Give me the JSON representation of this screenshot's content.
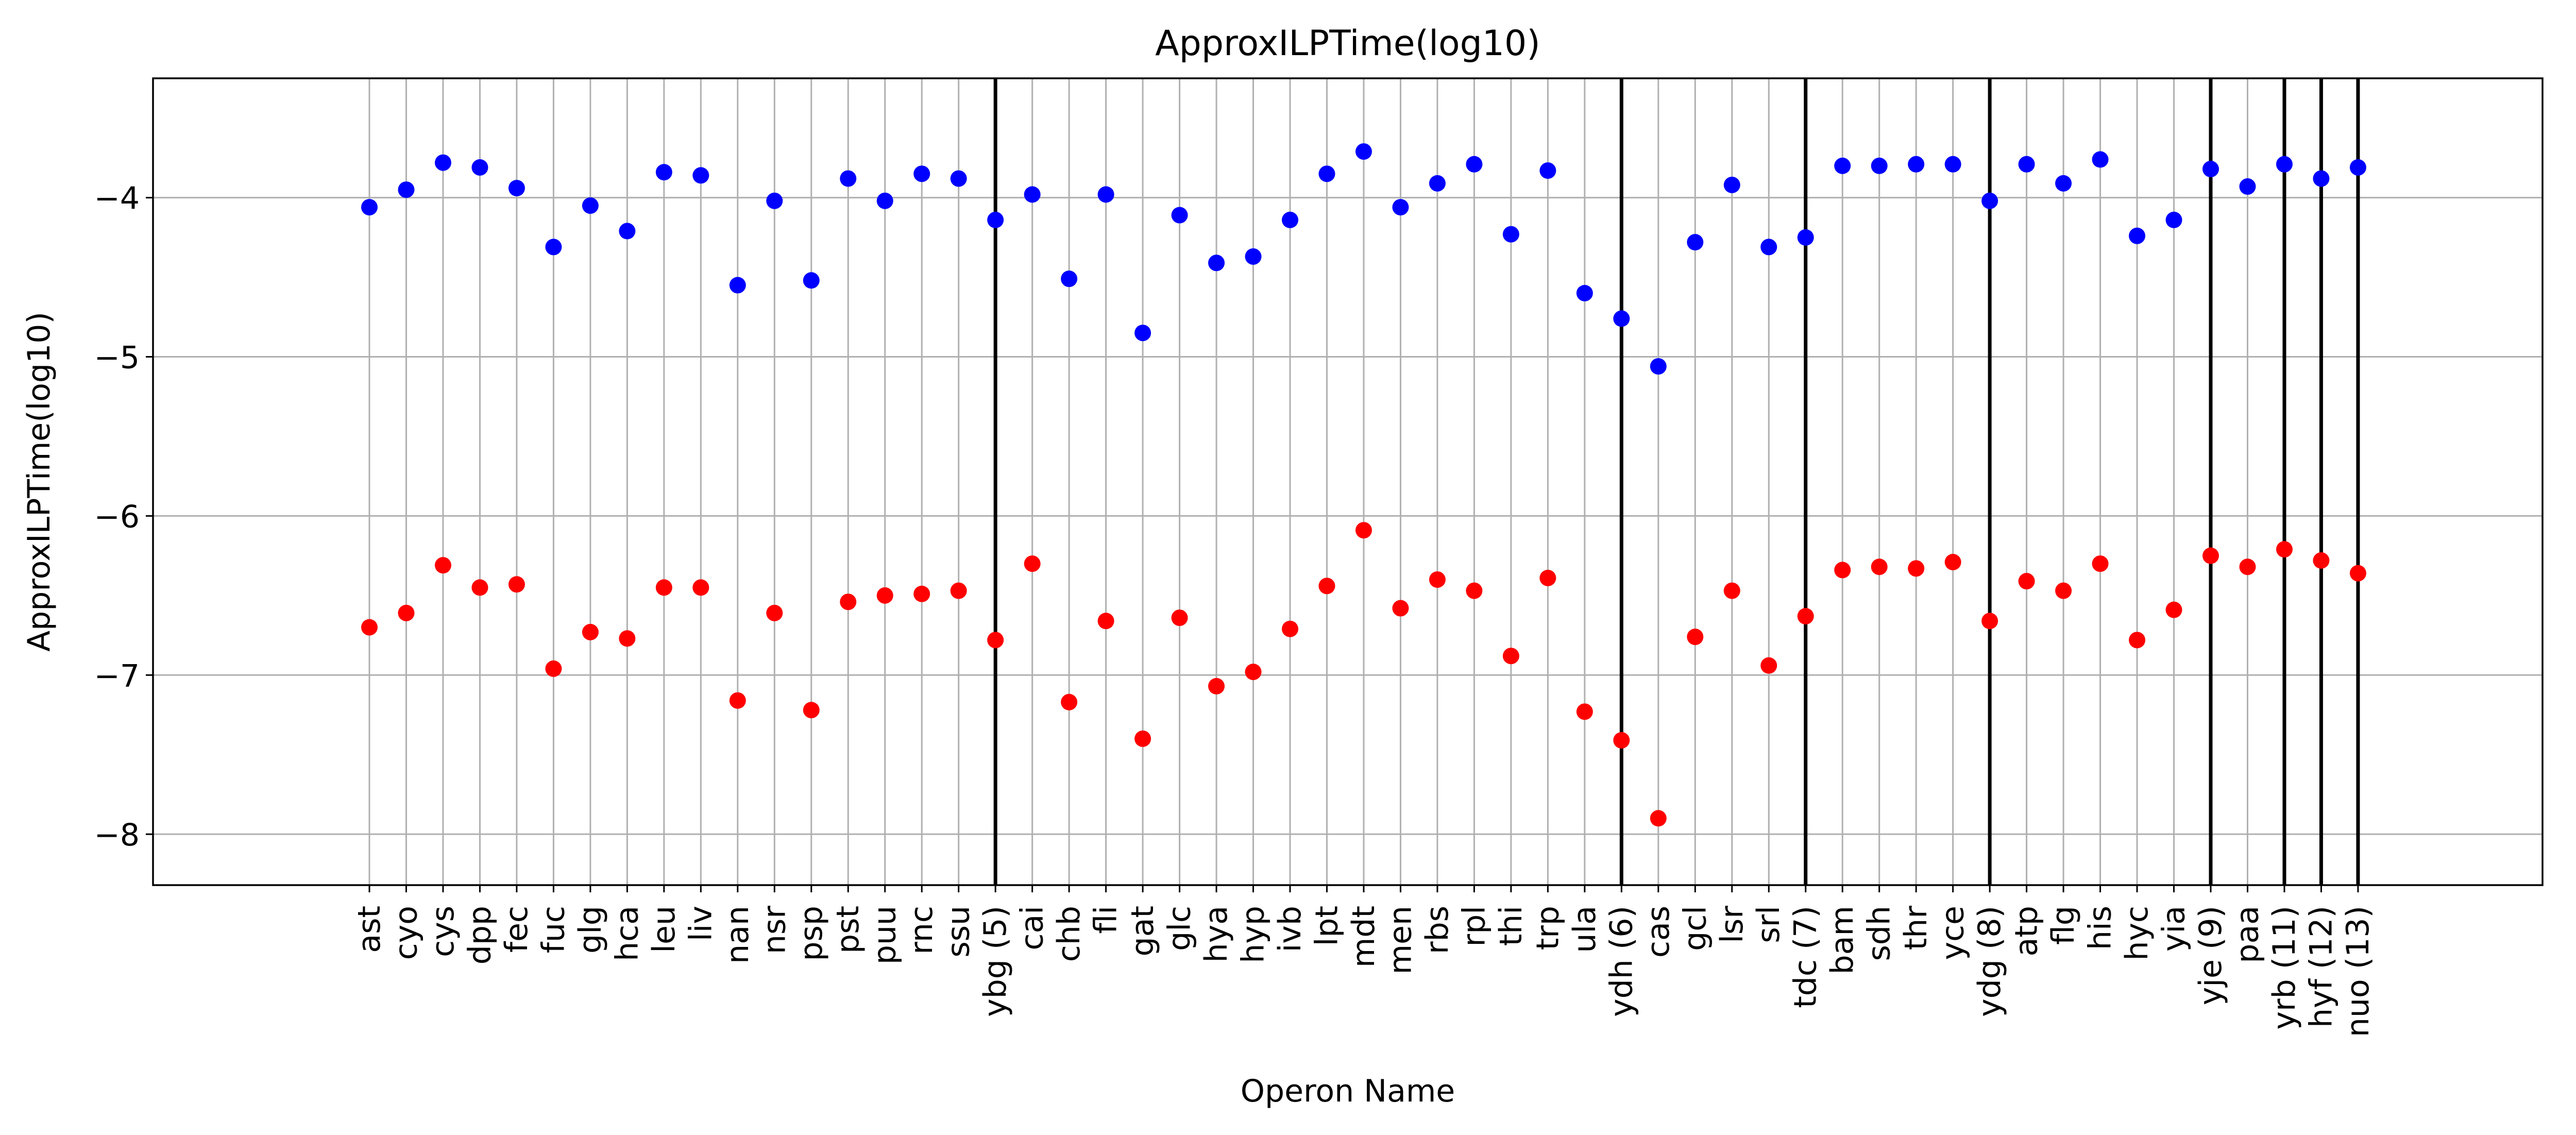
{
  "chart_data": {
    "type": "scatter",
    "title": "ApproxILPTime(log10)",
    "xlabel": "Operon Name",
    "ylabel": "ApproxILPTime(log10)",
    "categories": [
      "ast",
      "cyo",
      "cys",
      "dpp",
      "fec",
      "fuc",
      "glg",
      "hca",
      "leu",
      "liv",
      "nan",
      "nsr",
      "psp",
      "pst",
      "puu",
      "rnc",
      "ssu",
      "ybg (5)",
      "cai",
      "chb",
      "fli",
      "gat",
      "glc",
      "hya",
      "hyp",
      "ivb",
      "lpt",
      "mdt",
      "men",
      "rbs",
      "rpl",
      "thi",
      "trp",
      "ula",
      "ydh (6)",
      "cas",
      "gcl",
      "lsr",
      "srl",
      "tdc (7)",
      "bam",
      "sdh",
      "thr",
      "yce",
      "ydg (8)",
      "atp",
      "flg",
      "his",
      "hyc",
      "yia",
      "yje (9)",
      "paa",
      "yrb (11)",
      "hyf (12)",
      "nuo (13)"
    ],
    "series": [
      {
        "color": "#0000ff",
        "values": [
          -4.06,
          -3.95,
          -3.78,
          -3.81,
          -3.94,
          -4.31,
          -4.05,
          -4.21,
          -3.84,
          -3.86,
          -4.55,
          -4.02,
          -4.52,
          -3.88,
          -4.02,
          -3.85,
          -3.88,
          -4.14,
          -3.98,
          -4.51,
          -3.98,
          -4.85,
          -4.11,
          -4.41,
          -4.37,
          -4.14,
          -3.85,
          -3.71,
          -4.06,
          -3.91,
          -3.79,
          -4.23,
          -3.83,
          -4.6,
          -4.76,
          -5.06,
          -4.28,
          -3.92,
          -4.31,
          -4.25,
          -3.8,
          -3.8,
          -3.79,
          -3.79,
          -4.02,
          -3.79,
          -3.91,
          -3.76,
          -4.24,
          -4.14,
          -3.82,
          -3.93,
          -3.79,
          -3.88,
          -3.81
        ]
      },
      {
        "color": "#ff0000",
        "values": [
          -6.7,
          -6.61,
          -6.31,
          -6.45,
          -6.43,
          -6.96,
          -6.73,
          -6.77,
          -6.45,
          -6.45,
          -7.16,
          -6.61,
          -7.22,
          -6.54,
          -6.5,
          -6.49,
          -6.47,
          -6.78,
          -6.3,
          -7.17,
          -6.66,
          -7.4,
          -6.64,
          -7.07,
          -6.98,
          -6.71,
          -6.44,
          -6.09,
          -6.58,
          -6.4,
          -6.47,
          -6.88,
          -6.39,
          -7.23,
          -7.41,
          -7.9,
          -6.76,
          -6.47,
          -6.94,
          -6.63,
          -6.34,
          -6.32,
          -6.33,
          -6.29,
          -6.66,
          -6.41,
          -6.47,
          -6.3,
          -6.78,
          -6.59,
          -6.25,
          -6.32,
          -6.21,
          -6.28,
          -6.36
        ]
      }
    ],
    "vertical_lines_at": [
      "ybg (5)",
      "ydh (6)",
      "tdc (7)",
      "ydg (8)",
      "yje (9)",
      "yrb (11)",
      "hyf (12)",
      "nuo (13)"
    ],
    "yticks": [
      -8,
      -7,
      -6,
      -5,
      -4
    ],
    "ytick_labels": [
      "−8",
      "−7",
      "−6",
      "−5",
      "−4"
    ],
    "ylim": [
      -8.32,
      -3.25
    ],
    "grid": true,
    "legend": "none"
  }
}
